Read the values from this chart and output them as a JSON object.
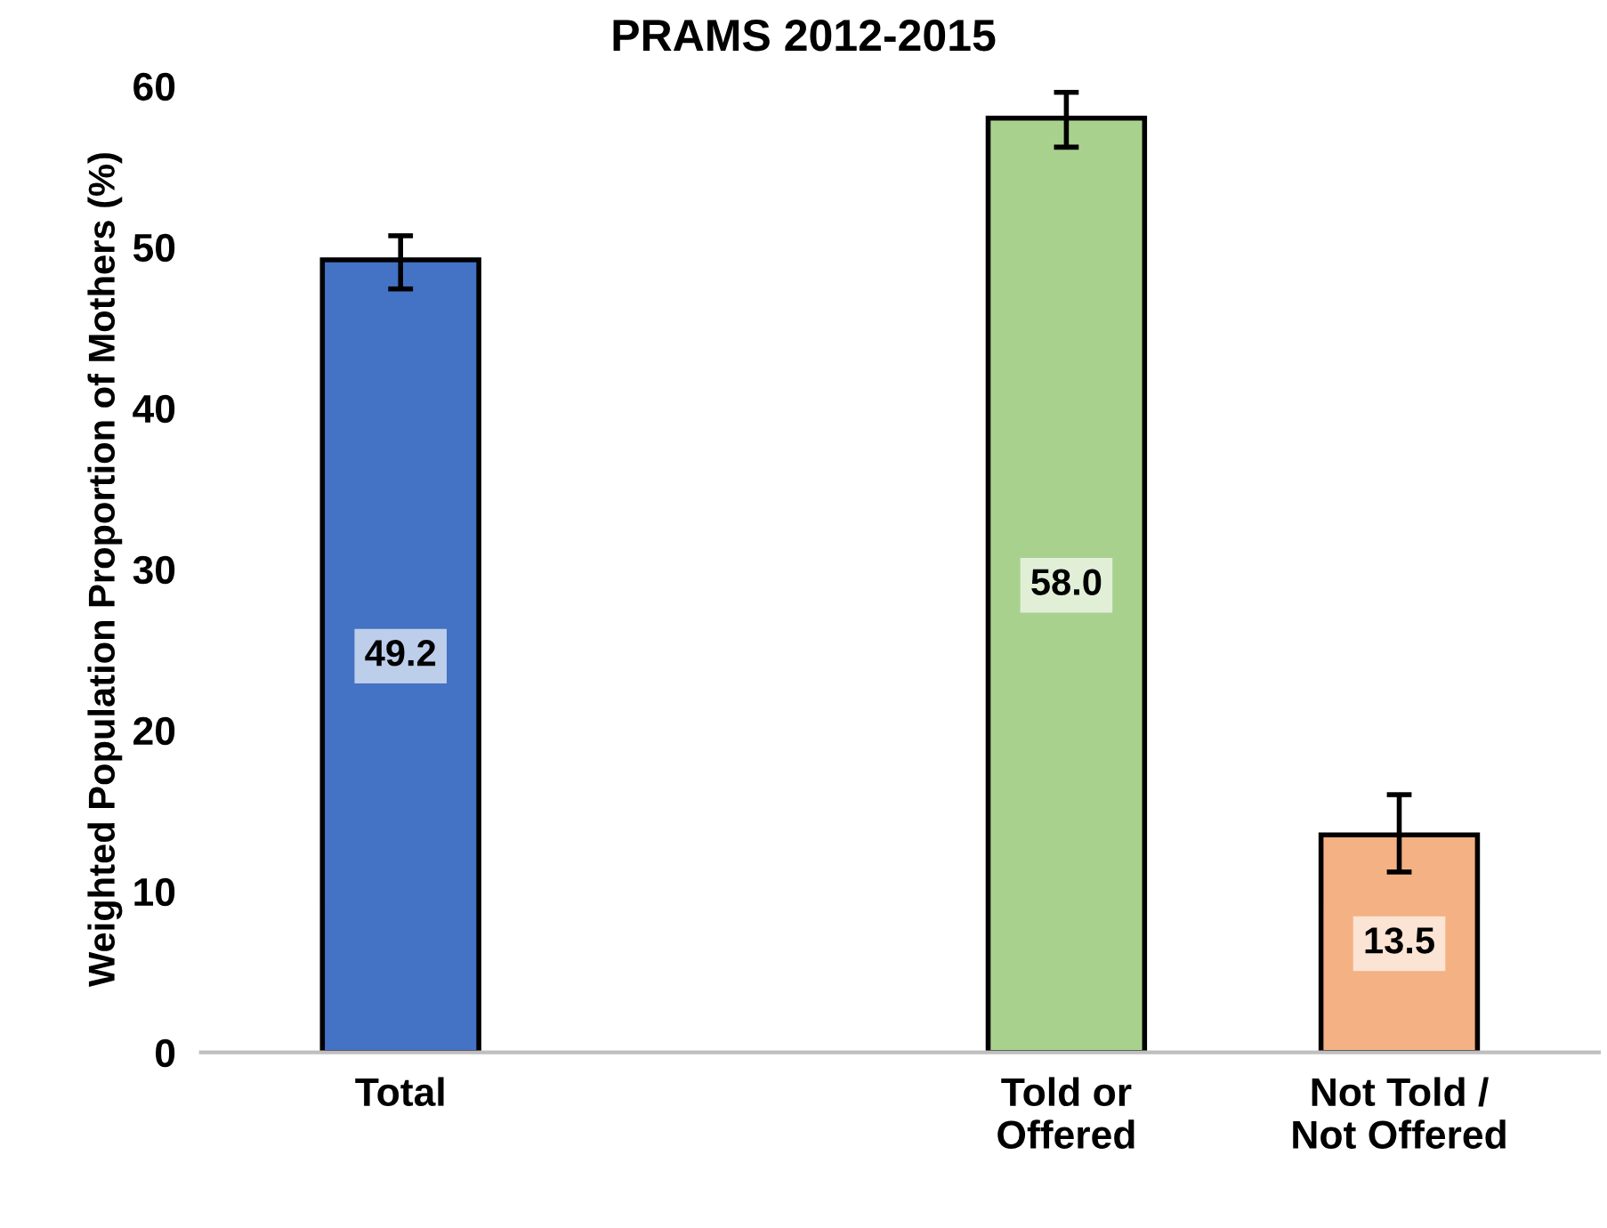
{
  "chart_data": {
    "type": "bar",
    "title": "PRAMS 2012-2015",
    "ylabel": "Weighted Population Proportion of Mothers (%)",
    "categories": [
      "Total",
      null,
      "Told or\nOffered",
      "Not Told /\nNot Offered"
    ],
    "values": [
      49.2,
      null,
      58.0,
      13.5
    ],
    "colors": [
      "#4472c4",
      "#ffffff",
      "#a9d18e",
      "#f4b183"
    ],
    "errors": [
      [
        47.4,
        50.7
      ],
      null,
      [
        56.2,
        59.6
      ],
      [
        11.2,
        16.0
      ]
    ],
    "value_labels": [
      "49.2",
      null,
      "58.0",
      "13.5"
    ],
    "ylim": [
      0,
      60
    ],
    "yticks": [
      0,
      10,
      20,
      30,
      40,
      50,
      60
    ],
    "grid": false
  }
}
